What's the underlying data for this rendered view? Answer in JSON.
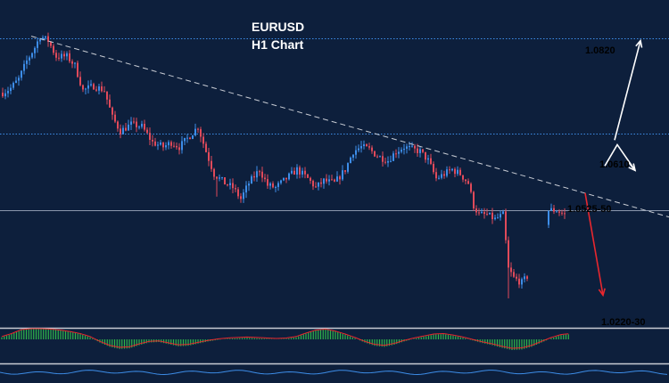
{
  "chart_data": {
    "type": "candlestick",
    "title": "EURUSD",
    "subtitle": "H1 Chart",
    "colors": {
      "background": "#0d1f3c",
      "bull_candle": "#3d8de8",
      "bear_candle": "#e04a5a",
      "level_line": "#3d8de8",
      "level_label": "#4aa3ff",
      "trendline": "#c8ccd4",
      "arrow_up": "#ffffff",
      "arrow_down": "#e8272e",
      "macd_hist": "#2fb54a",
      "macd_signal": "#e8272e"
    },
    "levels": [
      {
        "value": 1.082,
        "label": "1.0820",
        "style": "dotted"
      },
      {
        "value": 1.061,
        "label": "1.0610",
        "style": "dotted"
      },
      {
        "value": 1.044,
        "label": "",
        "style": "solid"
      }
    ],
    "annotations": [
      {
        "label": "1.0525-50",
        "value": 1.0537,
        "color": "#ffffff"
      },
      {
        "label": "1.0220-30",
        "value": 1.0225,
        "color": "#4aa3ff"
      }
    ],
    "price_path": [
      [
        0,
        1.07
      ],
      [
        3,
        1.071
      ],
      [
        6,
        1.073
      ],
      [
        9,
        1.077
      ],
      [
        12,
        1.08
      ],
      [
        14,
        1.0825
      ],
      [
        17,
        1.0815
      ],
      [
        20,
        1.078
      ],
      [
        24,
        1.078
      ],
      [
        27,
        1.076
      ],
      [
        30,
        1.0705
      ],
      [
        34,
        1.0715
      ],
      [
        38,
        1.0705
      ],
      [
        41,
        1.0645
      ],
      [
        44,
        1.0615
      ],
      [
        48,
        1.063
      ],
      [
        52,
        1.0625
      ],
      [
        56,
        1.059
      ],
      [
        60,
        1.058
      ],
      [
        63,
        1.059
      ],
      [
        66,
        1.058
      ],
      [
        70,
        1.0605
      ],
      [
        73,
        1.0625
      ],
      [
        76,
        1.057
      ],
      [
        79,
        1.052
      ],
      [
        83,
        1.05
      ],
      [
        86,
        1.049
      ],
      [
        89,
        1.0465
      ],
      [
        92,
        1.05
      ],
      [
        96,
        1.053
      ],
      [
        99,
        1.0495
      ],
      [
        102,
        1.049
      ],
      [
        106,
        1.051
      ],
      [
        110,
        1.053
      ],
      [
        114,
        1.051
      ],
      [
        117,
        1.049
      ],
      [
        120,
        1.0505
      ],
      [
        124,
        1.05
      ],
      [
        128,
        1.053
      ],
      [
        131,
        1.057
      ],
      [
        134,
        1.058
      ],
      [
        137,
        1.0575
      ],
      [
        140,
        1.056
      ],
      [
        144,
        1.055
      ],
      [
        147,
        1.057
      ],
      [
        150,
        1.058
      ],
      [
        153,
        1.0575
      ],
      [
        156,
        1.057
      ],
      [
        159,
        1.055
      ],
      [
        162,
        1.051
      ],
      [
        165,
        1.052
      ],
      [
        168,
        1.053
      ],
      [
        171,
        1.052
      ],
      [
        174,
        1.05
      ],
      [
        176,
        1.045
      ],
      [
        178,
        1.043
      ],
      [
        181,
        1.043
      ],
      [
        184,
        1.042
      ],
      [
        187,
        1.043
      ],
      [
        189,
        1.031
      ],
      [
        191,
        1.029
      ],
      [
        194,
        1.028
      ],
      [
        197,
        1.03
      ],
      [
        200,
        1.031
      ],
      [
        204,
        1.044
      ],
      [
        207,
        1.044
      ],
      [
        210,
        1.043
      ]
    ],
    "macd_histogram": [
      0.2,
      0.5,
      0.9,
      1.0,
      1.0,
      0.95,
      0.85,
      0.7,
      0.5,
      0.2,
      -0.3,
      -0.7,
      -0.9,
      -0.85,
      -0.55,
      -0.3,
      -0.25,
      -0.45,
      -0.65,
      -0.6,
      -0.4,
      -0.2,
      -0.05,
      0.05,
      0.1,
      0.15,
      0.1,
      0.05,
      0.0,
      0.05,
      0.2,
      0.55,
      0.85,
      0.95,
      0.75,
      0.45,
      0.1,
      -0.3,
      -0.6,
      -0.7,
      -0.5,
      -0.2,
      0.05,
      0.25,
      0.45,
      0.5,
      0.35,
      0.15,
      -0.1,
      -0.35,
      -0.55,
      -0.8,
      -1.0,
      -0.95,
      -0.7,
      -0.3,
      0.1,
      0.4,
      0.5
    ],
    "ylim": [
      1.018,
      1.0905
    ],
    "grid": false,
    "legend": "none"
  }
}
